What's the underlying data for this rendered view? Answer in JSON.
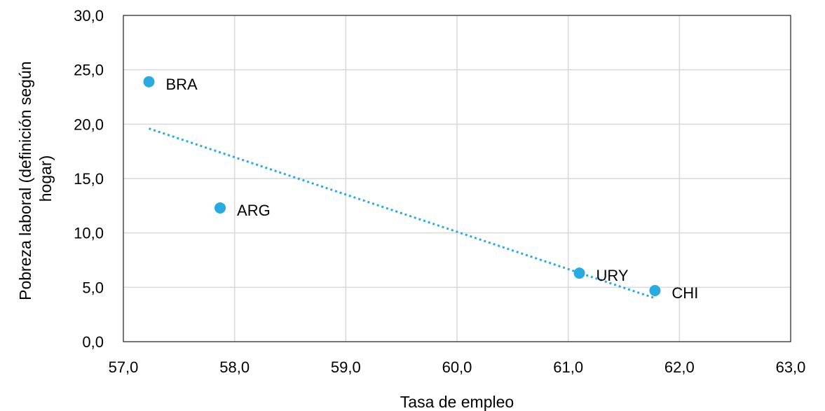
{
  "chart_data": {
    "type": "scatter",
    "title": "",
    "xlabel": "Tasa de empleo",
    "ylabel_lines": [
      "Pobreza laboral (definición según",
      "hogar)"
    ],
    "xlim": [
      57,
      63
    ],
    "ylim": [
      0,
      30
    ],
    "x_ticks": [
      57,
      58,
      59,
      60,
      61,
      62,
      63
    ],
    "y_ticks": [
      0,
      5,
      10,
      15,
      20,
      25,
      30
    ],
    "x_tick_labels": [
      "57,0",
      "58,0",
      "59,0",
      "60,0",
      "61,0",
      "62,0",
      "63,0"
    ],
    "y_tick_labels": [
      "0,0",
      "5,0",
      "10,0",
      "15,0",
      "20,0",
      "25,0",
      "30,0"
    ],
    "grid": true,
    "point_color": "#29ABE2",
    "grid_color": "#D9D9D9",
    "points": [
      {
        "label": "BRA",
        "x": 57.23,
        "y": 23.9
      },
      {
        "label": "ARG",
        "x": 57.87,
        "y": 12.3
      },
      {
        "label": "URY",
        "x": 61.1,
        "y": 6.3
      },
      {
        "label": "CHI",
        "x": 61.78,
        "y": 4.7
      }
    ],
    "trendline": {
      "type": "linear",
      "style": "dotted",
      "x": [
        57.23,
        61.78
      ],
      "y": [
        19.6,
        4.0
      ]
    }
  }
}
